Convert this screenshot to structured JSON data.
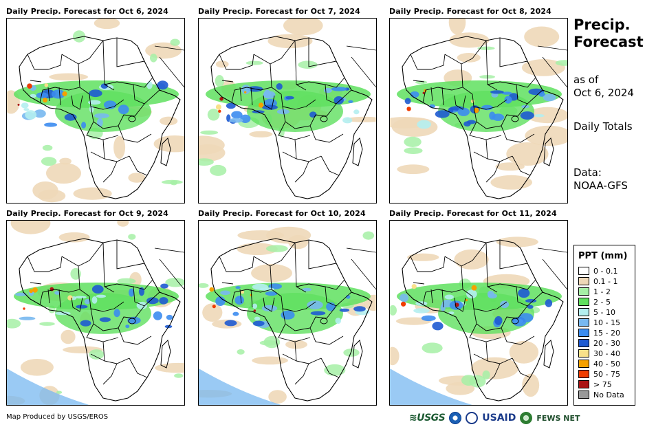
{
  "panels": [
    {
      "title": "Daily Precip. Forecast for Oct 6, 2024"
    },
    {
      "title": "Daily Precip. Forecast for Oct 7, 2024"
    },
    {
      "title": "Daily Precip. Forecast for Oct 8, 2024"
    },
    {
      "title": "Daily Precip. Forecast for Oct 9, 2024"
    },
    {
      "title": "Daily Precip. Forecast for Oct 10, 2024"
    },
    {
      "title": "Daily Precip. Forecast for Oct 11, 2024"
    }
  ],
  "side": {
    "title_line1": "Precip.",
    "title_line2": "Forecast",
    "asof_line1": "as of",
    "asof_line2": "Oct 6, 2024",
    "totals": "Daily Totals",
    "data_line1": "Data:",
    "data_line2": "NOAA-GFS"
  },
  "legend": {
    "title": "PPT (mm)",
    "items": [
      {
        "label": "0 - 0.1",
        "color": "#ffffff"
      },
      {
        "label": "0.1 - 1",
        "color": "#eed8b8"
      },
      {
        "label": "1 - 2",
        "color": "#a6f0a6"
      },
      {
        "label": "2 - 5",
        "color": "#5fe05f"
      },
      {
        "label": "5 - 10",
        "color": "#b4eef0"
      },
      {
        "label": "10 - 15",
        "color": "#78b8f0"
      },
      {
        "label": "15 - 20",
        "color": "#3c8cf0"
      },
      {
        "label": "20 - 30",
        "color": "#1e5ad2"
      },
      {
        "label": "30 - 40",
        "color": "#f8e08a"
      },
      {
        "label": "40 - 50",
        "color": "#f5a000"
      },
      {
        "label": "50 - 75",
        "color": "#f03c00"
      },
      {
        "label": "> 75",
        "color": "#aa1414"
      },
      {
        "label": "No Data",
        "color": "#999999"
      }
    ]
  },
  "footer": {
    "credit": "Map Produced by USGS/EROS",
    "logo_usgs": "≋USGS",
    "logo_usaid": "USAID",
    "logo_fews": "FEWS NET"
  }
}
